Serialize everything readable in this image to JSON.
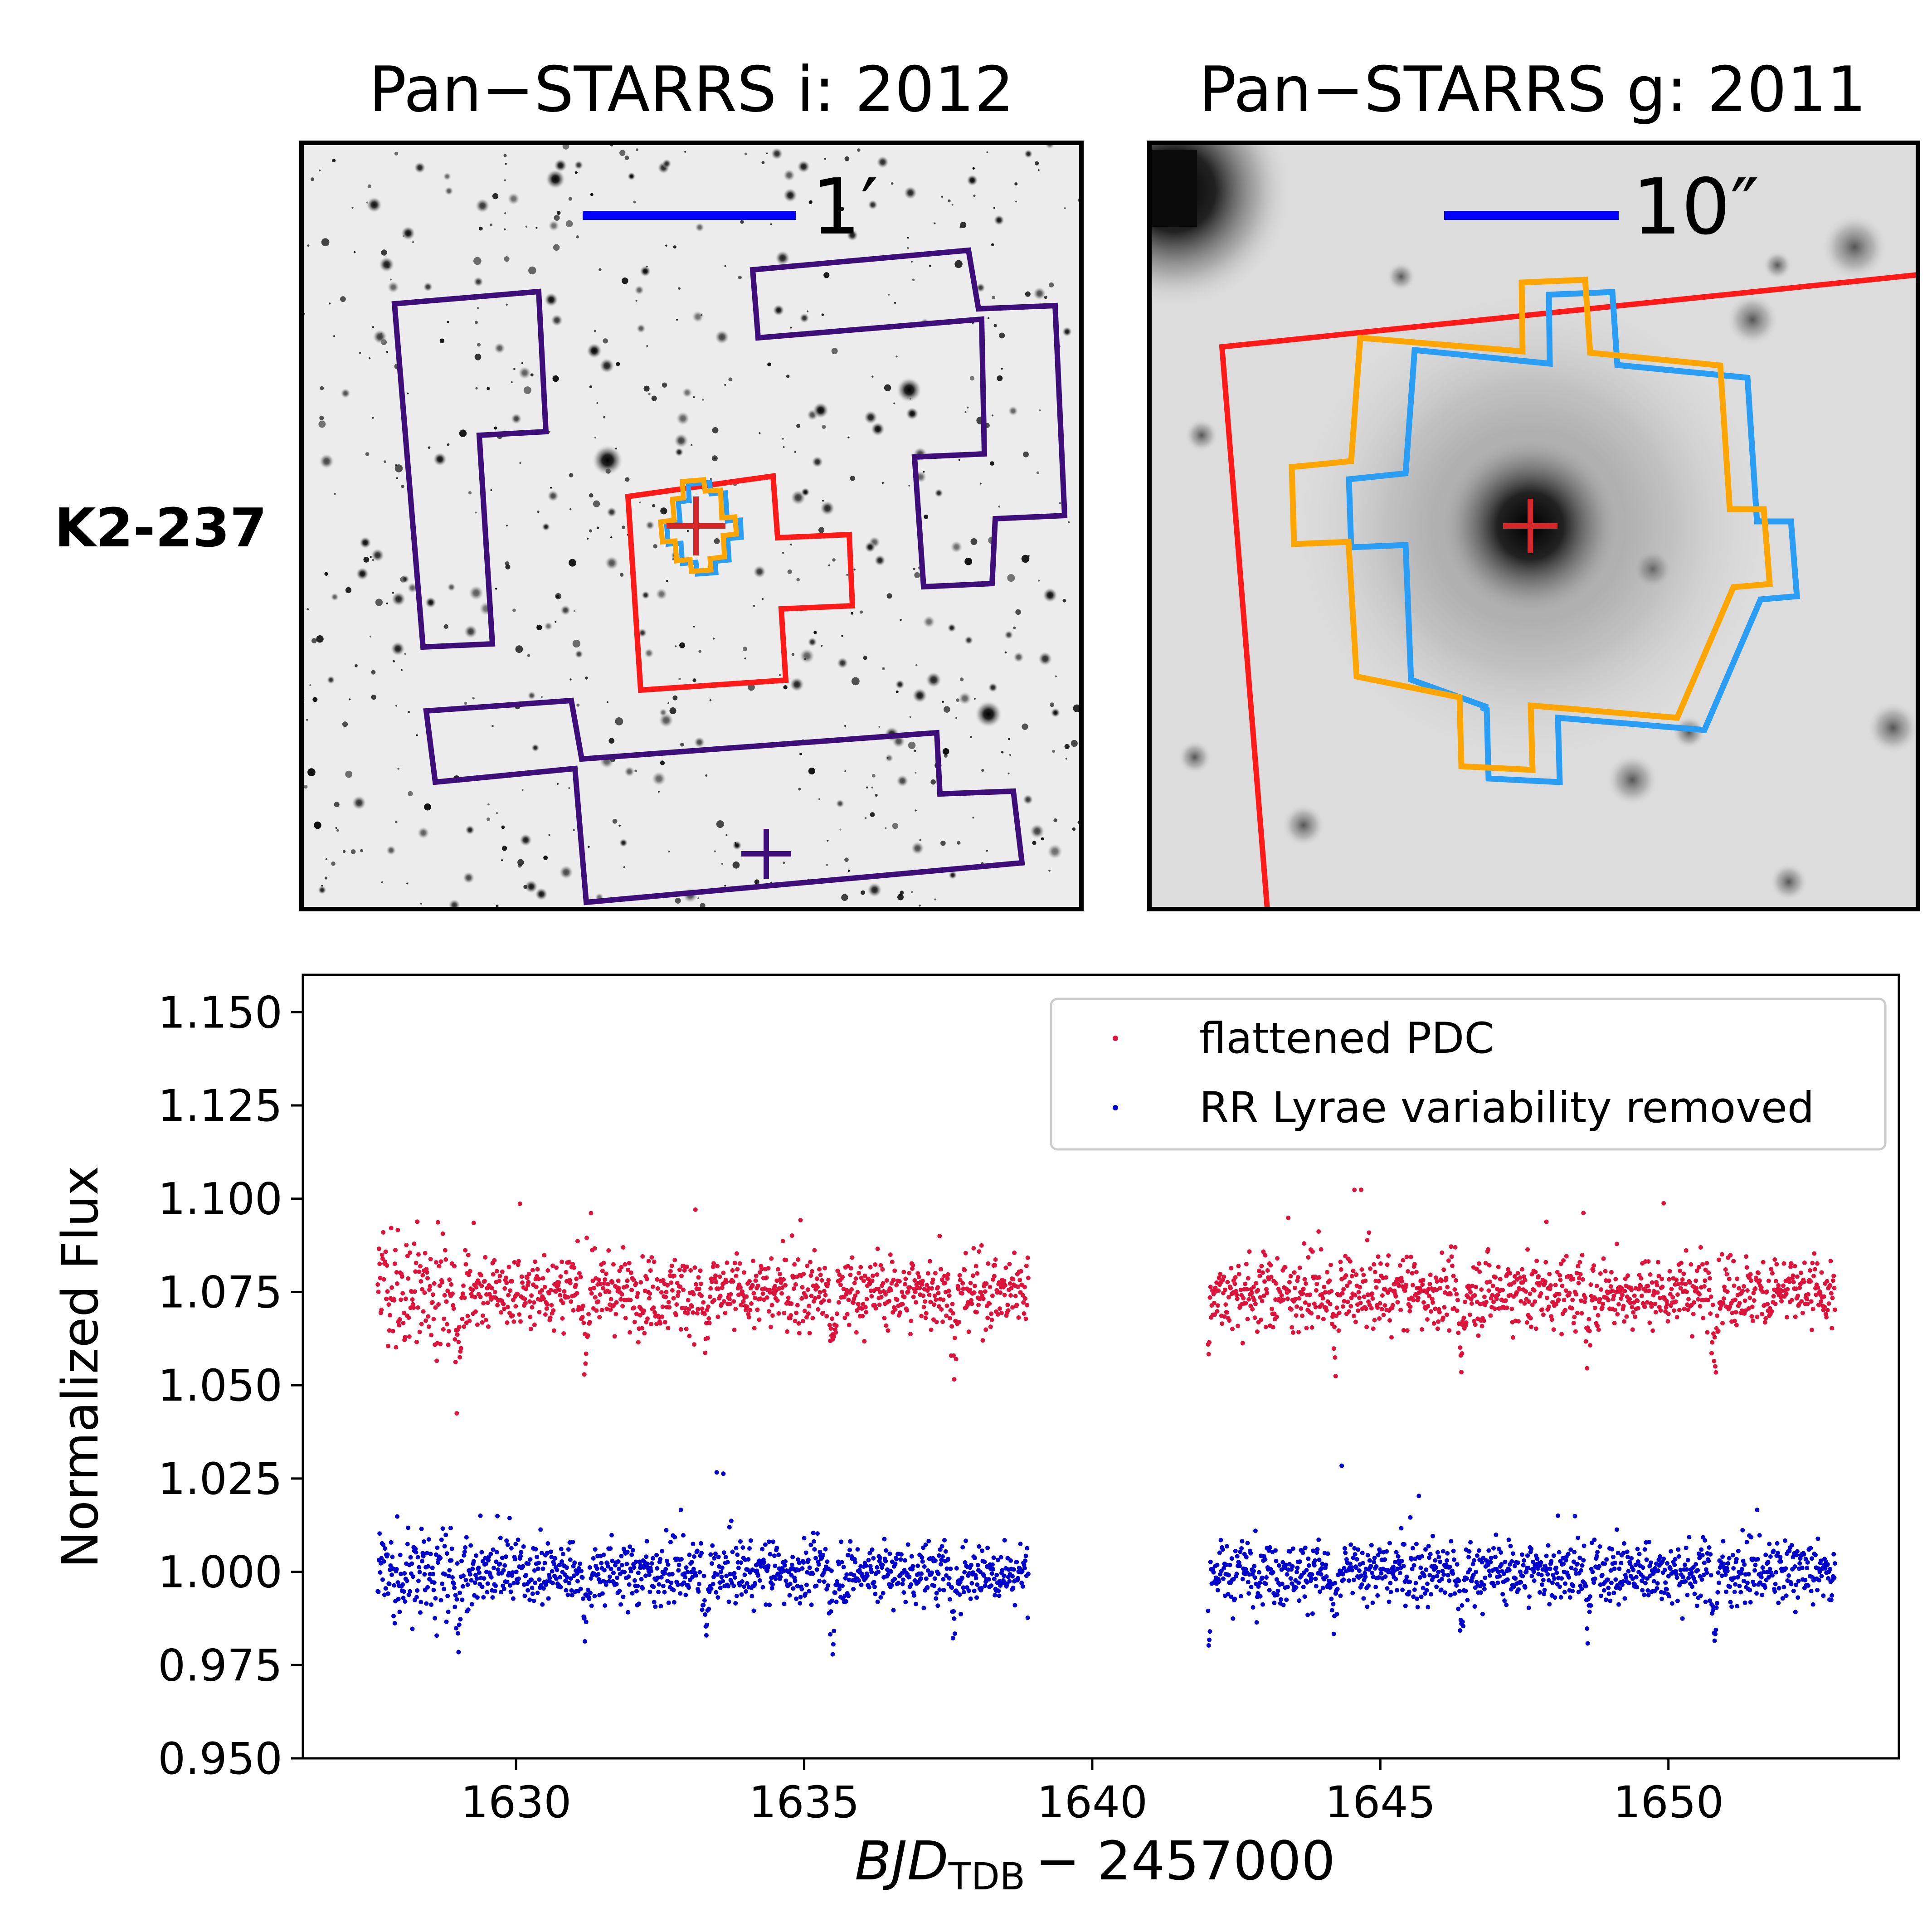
{
  "figure": {
    "target_label": "K2-237",
    "panels": [
      {
        "title": "Pan−STARRS i: 2012",
        "scale_bar_label": "1′",
        "background": "#ececec"
      },
      {
        "title": "Pan−STARRS g: 2011",
        "scale_bar_label": "10″",
        "background": "#dcdcdc"
      }
    ],
    "colors": {
      "aperture_red": "#ff1a1a",
      "aperture_orange": "#ffa500",
      "aperture_blue": "#2a9df4",
      "aperture_purple": "#3d0d7a",
      "scale_bar": "#0000ff",
      "target_cross": "#d62728"
    }
  },
  "chart_data": {
    "type": "scatter",
    "xlabel": "BJD",
    "xlabel_sub": "TDB",
    "xlabel_suffix": "− 2457000",
    "ylabel": "Normalized Flux",
    "xlim": [
      1626.3,
      1654.0
    ],
    "ylim": [
      0.95,
      1.16
    ],
    "xticks": [
      1630,
      1635,
      1640,
      1645,
      1650
    ],
    "xtick_labels": [
      "1630",
      "1635",
      "1640",
      "1645",
      "1650"
    ],
    "yticks": [
      0.95,
      0.975,
      1.0,
      1.025,
      1.05,
      1.075,
      1.1,
      1.125,
      1.15
    ],
    "ytick_labels": [
      "0.950",
      "0.975",
      "1.000",
      "1.025",
      "1.050",
      "1.075",
      "1.100",
      "1.125",
      "1.150"
    ],
    "data_gap": [
      1638.9,
      1642.0
    ],
    "time_range": [
      1627.6,
      1652.9
    ],
    "transit_times": [
      1629.0,
      1631.2,
      1633.3,
      1635.5,
      1637.6,
      1642.0,
      1644.2,
      1646.4,
      1648.6,
      1650.8
    ],
    "series": [
      {
        "name": "flattened PDC",
        "baseline": 1.075,
        "scatter": 0.007,
        "color": "#dc143c",
        "legend_label": "flattened PDC"
      },
      {
        "name": "RR Lyrae variability removed",
        "baseline": 1.0,
        "scatter": 0.006,
        "color": "#0000cd",
        "legend_label": "RR Lyrae variability removed"
      }
    ],
    "legend_position": "upper-right"
  }
}
